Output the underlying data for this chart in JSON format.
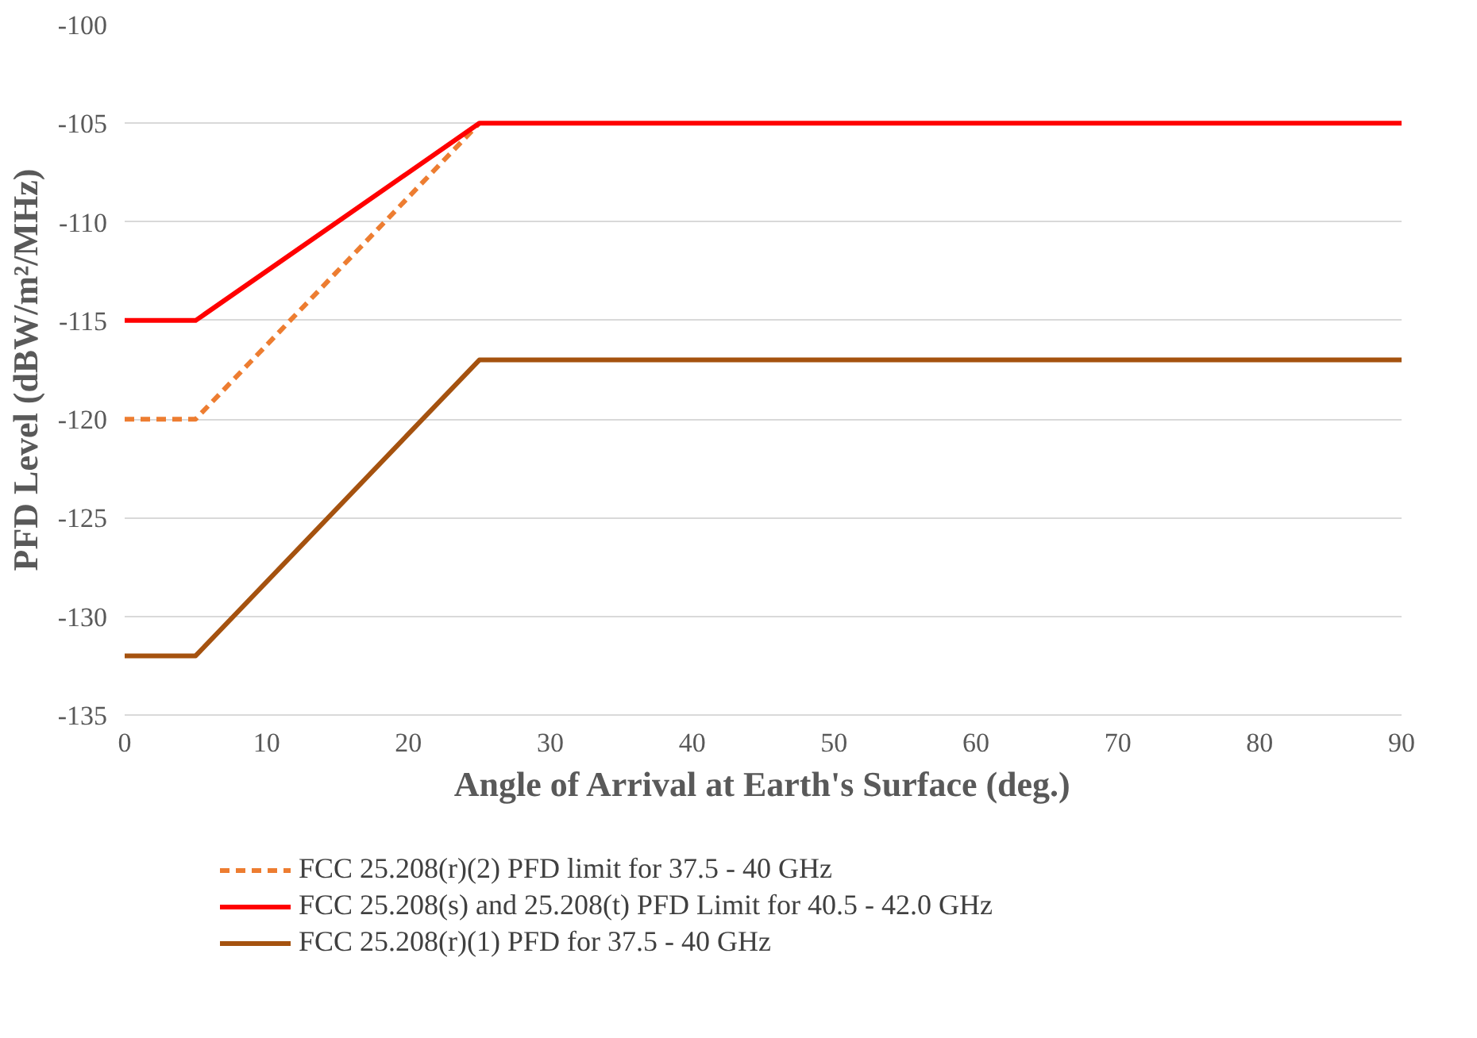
{
  "chart_data": {
    "type": "line",
    "xlabel": "Angle of Arrival at Earth's Surface (deg.)",
    "ylabel": "PFD Level (dBW/m²/MHz)",
    "xlim": [
      0,
      90
    ],
    "xticks": [
      0,
      10,
      20,
      30,
      40,
      50,
      60,
      70,
      80,
      90
    ],
    "ylim": [
      -135,
      -100
    ],
    "yticks": [
      -135,
      -130,
      -125,
      -120,
      -115,
      -110,
      -105,
      -100
    ],
    "grid": "y",
    "legend": "bottom",
    "x": [
      0,
      5,
      25,
      90
    ],
    "series": [
      {
        "name": "FCC 25.208(r)(2) PFD limit for 37.5 - 40 GHz",
        "color": "#ed7d31",
        "line_style": "dashed",
        "values": [
          -120,
          -120,
          -105,
          null
        ]
      },
      {
        "name": "FCC 25.208(s) and 25.208(t) PFD Limit for 40.5 - 42.0 GHz",
        "color": "#ff0000",
        "line_style": "solid",
        "values": [
          -115,
          -115,
          -105,
          -105
        ]
      },
      {
        "name": "FCC 25.208(r)(1) PFD for 37.5 - 40 GHz",
        "color": "#a5520f",
        "line_style": "solid",
        "values": [
          -132,
          -132,
          -117,
          -117
        ]
      }
    ]
  }
}
